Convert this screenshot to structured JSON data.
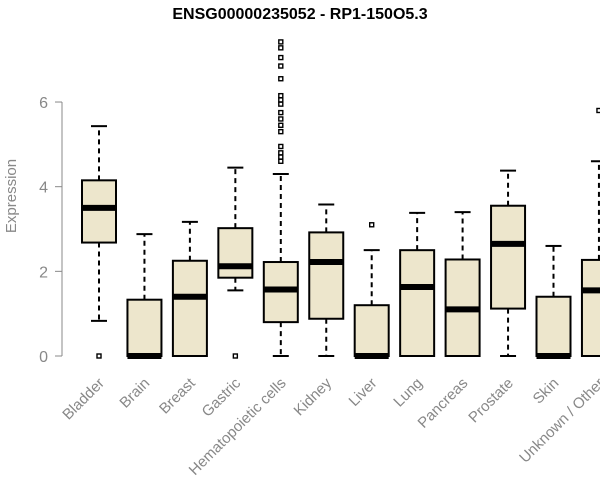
{
  "chart_data": {
    "type": "boxplot",
    "title": "ENSG00000235052 - RP1-150O5.3",
    "xlabel": "",
    "ylabel": "Expression",
    "ylim": [
      0,
      7.6
    ],
    "yticks": [
      0,
      2,
      4,
      6
    ],
    "grid": false,
    "colors": {
      "box_fill": "#ede6cc",
      "stroke": "#000000",
      "axis": "#888888"
    },
    "categories": [
      "Bladder",
      "Brain",
      "Breast",
      "Gastric",
      "Hematopoietic cells",
      "Kidney",
      "Liver",
      "Lung",
      "Pancreas",
      "Prostate",
      "Skin",
      "Unknown / Other"
    ],
    "boxes": [
      {
        "name": "Bladder",
        "whisker_low": 0.83,
        "q1": 2.68,
        "median": 3.5,
        "q3": 4.15,
        "whisker_high": 5.43,
        "outliers": [
          0
        ]
      },
      {
        "name": "Brain",
        "whisker_low": 0,
        "q1": 0,
        "median": 0,
        "q3": 1.33,
        "whisker_high": 2.88,
        "outliers": []
      },
      {
        "name": "Breast",
        "whisker_low": 0,
        "q1": 0,
        "median": 1.4,
        "q3": 2.25,
        "whisker_high": 3.17,
        "outliers": []
      },
      {
        "name": "Gastric",
        "whisker_low": 1.55,
        "q1": 1.85,
        "median": 2.12,
        "q3": 3.02,
        "whisker_high": 4.45,
        "outliers": [
          0
        ]
      },
      {
        "name": "Hematopoietic cells",
        "whisker_low": 0,
        "q1": 0.8,
        "median": 1.57,
        "q3": 2.22,
        "whisker_high": 4.3,
        "outliers": [
          4.6,
          4.7,
          4.8,
          4.95,
          5.3,
          5.45,
          5.6,
          5.75,
          5.95,
          6.05,
          6.15,
          6.55,
          6.85,
          7.05,
          7.28,
          7.42
        ]
      },
      {
        "name": "Kidney",
        "whisker_low": 0,
        "q1": 0.88,
        "median": 2.22,
        "q3": 2.92,
        "whisker_high": 3.58,
        "outliers": []
      },
      {
        "name": "Liver",
        "whisker_low": 0,
        "q1": 0,
        "median": 0,
        "q3": 1.2,
        "whisker_high": 2.5,
        "outliers": [
          3.1
        ]
      },
      {
        "name": "Lung",
        "whisker_low": 0,
        "q1": 0,
        "median": 1.63,
        "q3": 2.5,
        "whisker_high": 3.38,
        "outliers": []
      },
      {
        "name": "Pancreas",
        "whisker_low": 0,
        "q1": 0,
        "median": 1.1,
        "q3": 2.28,
        "whisker_high": 3.4,
        "outliers": []
      },
      {
        "name": "Prostate",
        "whisker_low": 0,
        "q1": 1.12,
        "median": 2.65,
        "q3": 3.55,
        "whisker_high": 4.38,
        "outliers": []
      },
      {
        "name": "Skin",
        "whisker_low": 0,
        "q1": 0,
        "median": 0,
        "q3": 1.4,
        "whisker_high": 2.6,
        "outliers": []
      },
      {
        "name": "Unknown / Other",
        "whisker_low": 0,
        "q1": 0,
        "median": 1.55,
        "q3": 2.27,
        "whisker_high": 4.6,
        "outliers": [
          5.8
        ]
      }
    ]
  }
}
